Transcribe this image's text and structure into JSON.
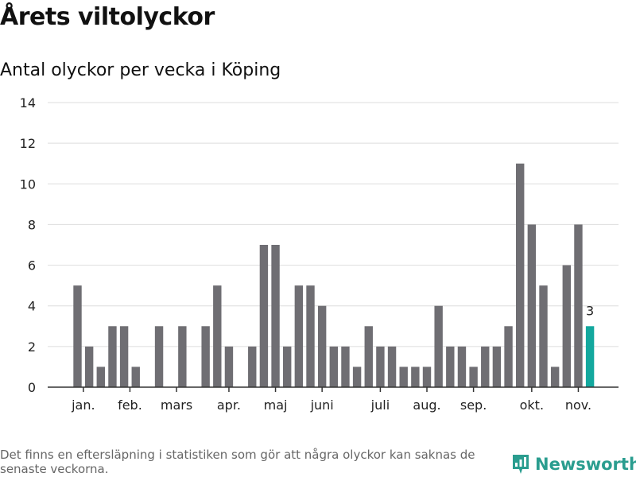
{
  "page": {
    "title": "Årets viltolyckor",
    "subtitle": "Antal olyckor per vecka i Köping",
    "footnote": "Det finns en eftersläpning i statistiken som gör att några olyckor kan saknas de senaste veckorna.",
    "brand": "Newsworthy"
  },
  "colors": {
    "bar": "#6f6e73",
    "highlight": "#13a89e",
    "grid": "#dddddd",
    "axis": "#333333",
    "brand": "#2a9d8f"
  },
  "chart_data": {
    "type": "bar",
    "x": [
      2,
      3,
      4,
      5,
      6,
      7,
      8,
      9,
      10,
      11,
      12,
      13,
      14,
      15,
      16,
      17,
      18,
      19,
      20,
      21,
      22,
      23,
      24,
      25,
      26,
      27,
      28,
      29,
      30,
      31,
      32,
      33,
      34,
      35,
      36,
      37,
      38,
      39,
      40,
      41,
      42,
      43,
      44,
      45,
      46
    ],
    "values": [
      5,
      2,
      1,
      3,
      3,
      1,
      0,
      3,
      0,
      3,
      0,
      3,
      5,
      2,
      0,
      2,
      7,
      7,
      2,
      5,
      5,
      4,
      2,
      2,
      1,
      3,
      2,
      2,
      1,
      1,
      1,
      4,
      2,
      2,
      1,
      2,
      2,
      3,
      11,
      8,
      5,
      1,
      6,
      8,
      3
    ],
    "highlight_last": true,
    "data_labels": [
      {
        "x": 46,
        "text": "3"
      }
    ],
    "month_ticks": [
      {
        "label": "jan.",
        "x": 2.5
      },
      {
        "label": "feb.",
        "x": 6.5
      },
      {
        "label": "mars",
        "x": 10.5
      },
      {
        "label": "apr.",
        "x": 15
      },
      {
        "label": "maj",
        "x": 19
      },
      {
        "label": "juni",
        "x": 23
      },
      {
        "label": "juli",
        "x": 28
      },
      {
        "label": "aug.",
        "x": 32
      },
      {
        "label": "sep.",
        "x": 36
      },
      {
        "label": "okt.",
        "x": 41
      },
      {
        "label": "nov.",
        "x": 45
      }
    ],
    "yticks": [
      0,
      2,
      4,
      6,
      8,
      10,
      12,
      14
    ],
    "ylim": [
      0,
      14
    ],
    "grid": true
  }
}
